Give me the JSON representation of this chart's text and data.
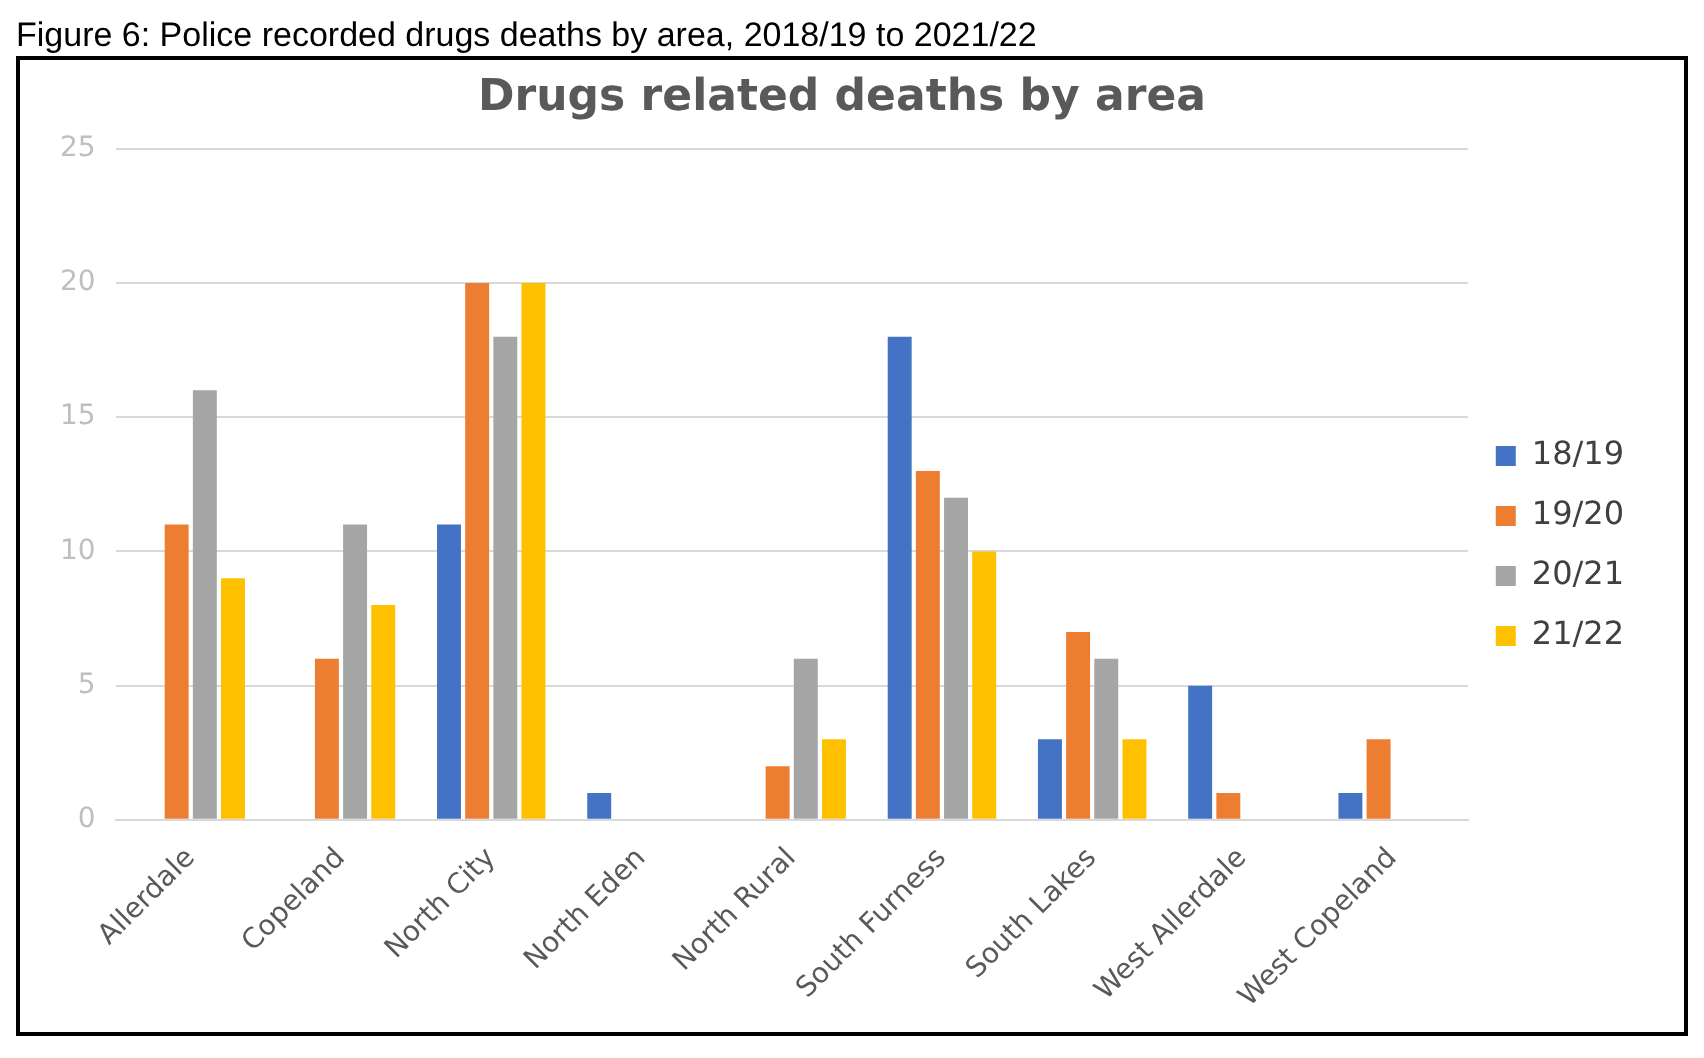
{
  "chart_data": {
    "type": "bar",
    "title": "Drugs related deaths by area",
    "annotations": [
      "Figure 6: Police recorded drugs deaths by area, 2018/19 to 2021/22"
    ],
    "categories": [
      "Allerdale",
      "Copeland",
      "North City",
      "North Eden",
      "North Rural",
      "South Furness",
      "South Lakes",
      "West Allerdale",
      "West Copeland"
    ],
    "series": [
      {
        "name": "18/19",
        "color": "#4472c4",
        "values": [
          0,
          0,
          11,
          1,
          0,
          18,
          3,
          5,
          1
        ]
      },
      {
        "name": "19/20",
        "color": "#ed7d31",
        "values": [
          11,
          6,
          20,
          0,
          2,
          13,
          7,
          1,
          3
        ]
      },
      {
        "name": "20/21",
        "color": "#a5a5a5",
        "values": [
          16,
          11,
          18,
          0,
          6,
          12,
          6,
          0,
          0
        ]
      },
      {
        "name": "21/22",
        "color": "#ffc000",
        "values": [
          9,
          8,
          20,
          0,
          3,
          10,
          3,
          0,
          0
        ]
      }
    ],
    "ylim": [
      0,
      25
    ],
    "yticks": [
      0,
      5,
      10,
      15,
      20,
      25
    ],
    "grid": "y",
    "legend": "right"
  }
}
